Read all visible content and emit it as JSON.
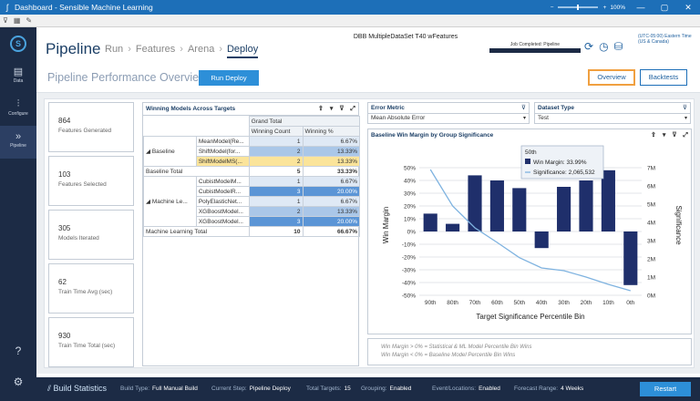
{
  "window": {
    "title": "Dashboard - Sensible Machine Learning",
    "zoom": "100%",
    "minimize": "—",
    "maximize": "▢",
    "close": "✕"
  },
  "toolbar": {
    "filter": "⊽",
    "grid": "▦",
    "edit": "✎"
  },
  "sidebar": {
    "items": [
      {
        "label": "Data"
      },
      {
        "label": "Configure"
      },
      {
        "label": "Pipeline"
      }
    ]
  },
  "header": {
    "title": "Pipeline",
    "steps": [
      "Run",
      "Features",
      "Arena",
      "Deploy"
    ],
    "active_step": "Deploy",
    "dataset": "DBB MultipleDataSet T40 wFeatures",
    "job_status": "Job Completed: Pipeline",
    "job_progress": 1.0,
    "timezone": "(UTC-05:00) Eastern Time (US & Canada)"
  },
  "main": {
    "title": "Pipeline Performance Overview:",
    "run_deploy": "Run Deploy",
    "overview": "Overview",
    "backtests": "Backtests"
  },
  "stats": [
    {
      "value": "864",
      "label": "Features Generated"
    },
    {
      "value": "103",
      "label": "Features Selected"
    },
    {
      "value": "305",
      "label": "Models Iterated"
    },
    {
      "value": "62",
      "label": "Train Time Avg (sec)"
    },
    {
      "value": "930",
      "label": "Train Time Total (sec)"
    }
  ],
  "models": {
    "title": "Winning Models Across Targets",
    "grand_total": "Grand Total",
    "col_count": "Winning Count",
    "col_pct": "Winning %",
    "baseline_label": "Baseline",
    "ml_label": "Machine Le...",
    "baseline_rows": [
      {
        "model": "MeanModel(Re...",
        "count": "1",
        "pct": "6.67%"
      },
      {
        "model": "ShiftModel(for...",
        "count": "2",
        "pct": "13.33%"
      },
      {
        "model": "ShiftModelMS(...",
        "count": "2",
        "pct": "13.33%"
      }
    ],
    "baseline_total": {
      "label": "Baseline Total",
      "count": "5",
      "pct": "33.33%"
    },
    "ml_rows": [
      {
        "model": "CubistModelM...",
        "count": "1",
        "pct": "6.67%"
      },
      {
        "model": "CubistModelR...",
        "count": "3",
        "pct": "20.00%"
      },
      {
        "model": "PolyElasticNet...",
        "count": "1",
        "pct": "6.67%"
      },
      {
        "model": "XGBoostModel...",
        "count": "2",
        "pct": "13.33%"
      },
      {
        "model": "XGBoostModel...",
        "count": "3",
        "pct": "20.00%"
      }
    ],
    "ml_total": {
      "label": "Machine Learning Total",
      "count": "10",
      "pct": "66.67%"
    }
  },
  "filters": {
    "error_metric": {
      "label": "Error Metric",
      "value": "Mean Absolute Error"
    },
    "dataset_type": {
      "label": "Dataset Type",
      "value": "Test"
    }
  },
  "chart": {
    "title": "Baseline Win Margin by Group Significance",
    "tooltip": {
      "title": "50th",
      "win": "Win Margin: 33.99%",
      "sig": "Significance: 2,065,532"
    },
    "footnote1": "Win Margin > 0% = Statistical & ML Model Percentile Bin Wins",
    "footnote2": "Win Margin < 0% = Baseline Model Percentile Bin Wins"
  },
  "chart_data": {
    "type": "bar",
    "title": "Baseline Win Margin by Group Significance",
    "xlabel": "Target Significance Percentile Bin",
    "ylabel": "Win Margin",
    "y2label": "Significance",
    "categories": [
      "90th",
      "80th",
      "70th",
      "60th",
      "50th",
      "40th",
      "30th",
      "20th",
      "10th",
      "0th"
    ],
    "series": [
      {
        "name": "Win Margin",
        "type": "bar",
        "values": [
          14,
          6,
          44,
          40,
          34,
          -13,
          35,
          40,
          48,
          -42
        ]
      },
      {
        "name": "Significance",
        "type": "line",
        "values": [
          6900000,
          4900000,
          3700000,
          2900000,
          2065532,
          1500000,
          1350000,
          1000000,
          600000,
          250000
        ]
      }
    ],
    "ylim": [
      -50,
      60
    ],
    "y_ticks": [
      "-50%",
      "-40%",
      "-30%",
      "-20%",
      "-10%",
      "0%",
      "10%",
      "20%",
      "30%",
      "40%",
      "50%"
    ],
    "y2lim": [
      0,
      7700000
    ],
    "y2_ticks": [
      "0M",
      "1M",
      "2M",
      "3M",
      "4M",
      "5M",
      "6M",
      "7M"
    ],
    "bar_color": "#1f2f6b",
    "line_color": "#7fb3e0"
  },
  "status_bar": {
    "title": "Build Statistics",
    "items": [
      {
        "label": "Build Type:",
        "value": "Full Manual Build"
      },
      {
        "label": "Current Step:",
        "value": "Pipeline Deploy"
      },
      {
        "label": "Total Targets:",
        "value": "15"
      },
      {
        "label": "Grouping:",
        "value": "Enabled"
      },
      {
        "label": "Event/Locations:",
        "value": "Enabled"
      },
      {
        "label": "Forecast Range:",
        "value": "4 Weeks"
      }
    ],
    "restart": "Restart"
  }
}
